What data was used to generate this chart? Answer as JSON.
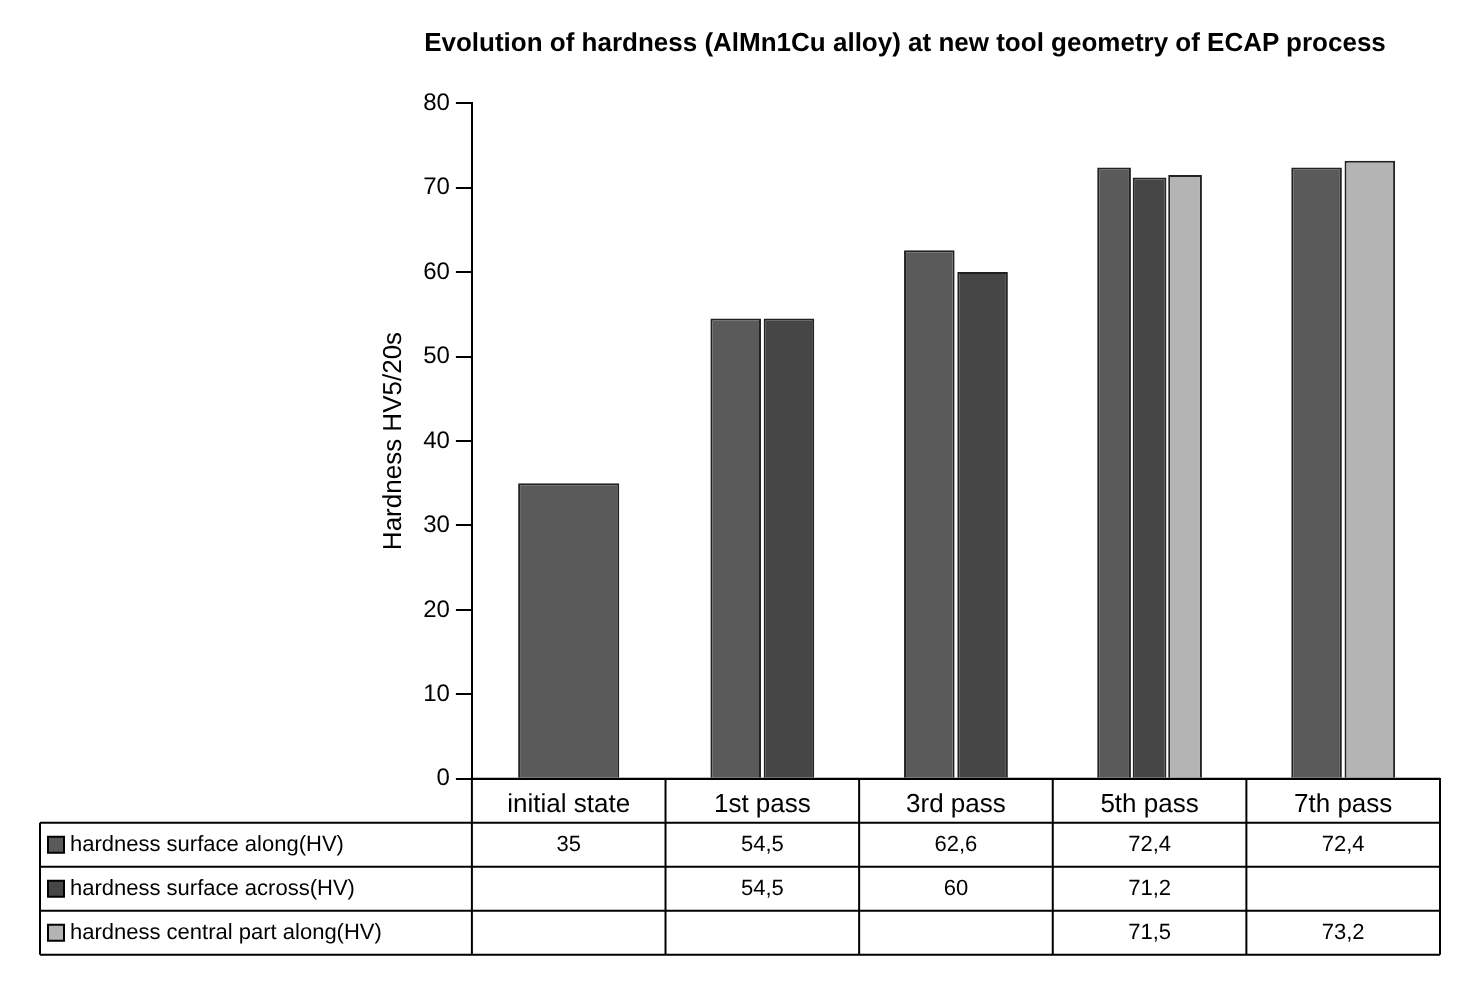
{
  "chart_data": {
    "type": "bar",
    "title": "Evolution of hardness (AlMn1Cu alloy) at new tool geometry of ECAP process",
    "ylabel": "Hardness HV5/20s",
    "categories": [
      "initial state",
      "1st pass",
      "3rd pass",
      "5th pass",
      "7th pass"
    ],
    "series": [
      {
        "name": "hardness surface along(HV)",
        "color": "#5a5a5a",
        "values": [
          35,
          54.5,
          62.6,
          72.4,
          72.4
        ],
        "value_labels": [
          "35",
          "54,5",
          "62,6",
          "72,4",
          "72,4"
        ]
      },
      {
        "name": "hardness surface across(HV)",
        "color": "#464646",
        "values": [
          null,
          54.5,
          60,
          71.2,
          null
        ],
        "value_labels": [
          null,
          "54,5",
          "60",
          "71,2",
          null
        ]
      },
      {
        "name": "hardness central part along(HV)",
        "color": "#b4b4b4",
        "values": [
          null,
          null,
          null,
          71.5,
          73.2
        ],
        "value_labels": [
          null,
          null,
          null,
          "71,5",
          "73,2"
        ]
      }
    ],
    "ylim": [
      0,
      80
    ],
    "yticks": [
      0,
      10,
      20,
      30,
      40,
      50,
      60,
      70,
      80
    ],
    "grid": false,
    "legend": "bottom"
  }
}
